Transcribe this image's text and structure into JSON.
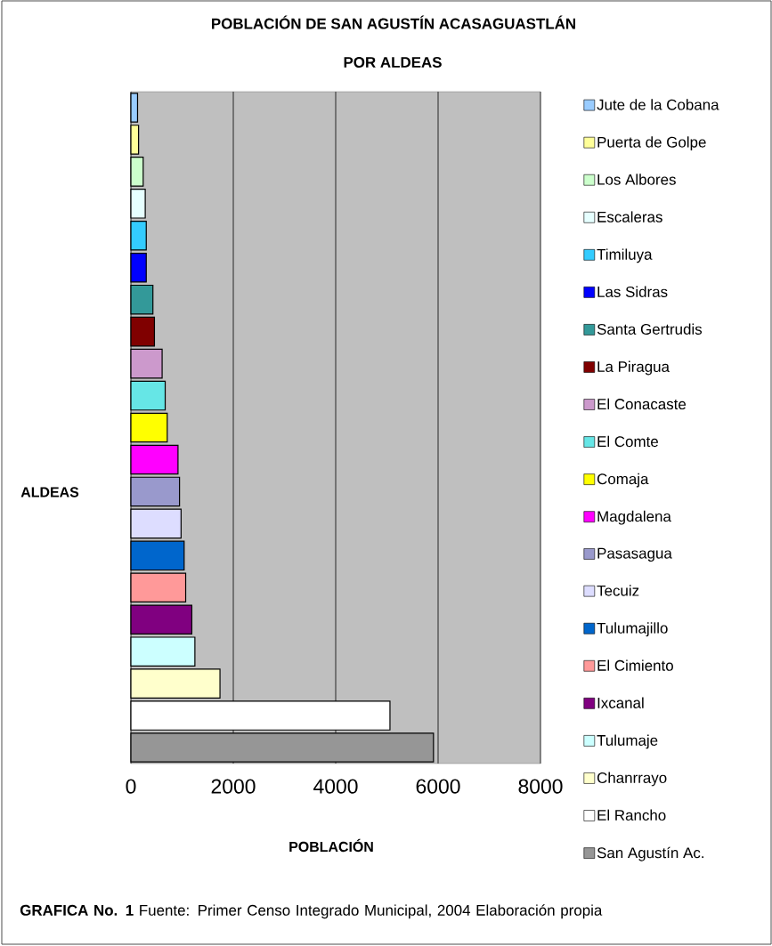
{
  "chart_data": {
    "type": "bar",
    "orientation": "horizontal",
    "title": "POBLACIÓN DE SAN AGUSTÍN ACASAGUASTLÁN",
    "subtitle": "POR ALDEAS",
    "xlabel": "POBLACIÓN",
    "ylabel": "ALDEAS",
    "categories": [
      null,
      null,
      null,
      null,
      null,
      null,
      null,
      null,
      null,
      null,
      null,
      null,
      null,
      null,
      null,
      null,
      null,
      null,
      null,
      null,
      null
    ],
    "series": [
      {
        "name": "Jute de la Cobana",
        "color": "#99ccff",
        "values": [
          130,
          null,
          null,
          null,
          null,
          null,
          null,
          null,
          null,
          null,
          null,
          null,
          null,
          null,
          null,
          null,
          null,
          null,
          null,
          null,
          null
        ]
      },
      {
        "name": "Puerta de Golpe",
        "color": "#ffff99",
        "values": [
          null,
          150,
          null,
          null,
          null,
          null,
          null,
          null,
          null,
          null,
          null,
          null,
          null,
          null,
          null,
          null,
          null,
          null,
          null,
          null,
          null
        ]
      },
      {
        "name": "Los Albores",
        "color": "#ccffcc",
        "values": [
          null,
          null,
          240,
          null,
          null,
          null,
          null,
          null,
          null,
          null,
          null,
          null,
          null,
          null,
          null,
          null,
          null,
          null,
          null,
          null,
          null
        ]
      },
      {
        "name": "Escaleras",
        "color": "#e6ffff",
        "values": [
          null,
          null,
          null,
          280,
          null,
          null,
          null,
          null,
          null,
          null,
          null,
          null,
          null,
          null,
          null,
          null,
          null,
          null,
          null,
          null,
          null
        ]
      },
      {
        "name": "Timiluya",
        "color": "#33ccff",
        "values": [
          null,
          null,
          null,
          null,
          300,
          null,
          null,
          null,
          null,
          null,
          null,
          null,
          null,
          null,
          null,
          null,
          null,
          null,
          null,
          null,
          null
        ]
      },
      {
        "name": "Las Sidras",
        "color": "#0000ff",
        "values": [
          null,
          null,
          null,
          null,
          null,
          300,
          null,
          null,
          null,
          null,
          null,
          null,
          null,
          null,
          null,
          null,
          null,
          null,
          null,
          null,
          null
        ]
      },
      {
        "name": "Santa Gertrudis",
        "color": "#339999",
        "values": [
          null,
          null,
          null,
          null,
          null,
          null,
          430,
          null,
          null,
          null,
          null,
          null,
          null,
          null,
          null,
          null,
          null,
          null,
          null,
          null,
          null
        ]
      },
      {
        "name": "La Piragua",
        "color": "#800000",
        "values": [
          null,
          null,
          null,
          null,
          null,
          null,
          null,
          460,
          null,
          null,
          null,
          null,
          null,
          null,
          null,
          null,
          null,
          null,
          null,
          null,
          null
        ]
      },
      {
        "name": "El Conacaste",
        "color": "#cc99cc",
        "values": [
          null,
          null,
          null,
          null,
          null,
          null,
          null,
          null,
          610,
          null,
          null,
          null,
          null,
          null,
          null,
          null,
          null,
          null,
          null,
          null,
          null
        ]
      },
      {
        "name": "El Comte",
        "color": "#66e6e6",
        "values": [
          null,
          null,
          null,
          null,
          null,
          null,
          null,
          null,
          null,
          670,
          null,
          null,
          null,
          null,
          null,
          null,
          null,
          null,
          null,
          null,
          null
        ]
      },
      {
        "name": "Comaja",
        "color": "#ffff00",
        "values": [
          null,
          null,
          null,
          null,
          null,
          null,
          null,
          null,
          null,
          null,
          710,
          null,
          null,
          null,
          null,
          null,
          null,
          null,
          null,
          null,
          null
        ]
      },
      {
        "name": "Magdalena",
        "color": "#ff00ff",
        "values": [
          null,
          null,
          null,
          null,
          null,
          null,
          null,
          null,
          null,
          null,
          null,
          920,
          null,
          null,
          null,
          null,
          null,
          null,
          null,
          null,
          null
        ]
      },
      {
        "name": "Pasasagua",
        "color": "#9999cc",
        "values": [
          null,
          null,
          null,
          null,
          null,
          null,
          null,
          null,
          null,
          null,
          null,
          null,
          950,
          null,
          null,
          null,
          null,
          null,
          null,
          null,
          null
        ]
      },
      {
        "name": "Tecuiz",
        "color": "#ddddff",
        "values": [
          null,
          null,
          null,
          null,
          null,
          null,
          null,
          null,
          null,
          null,
          null,
          null,
          null,
          980,
          null,
          null,
          null,
          null,
          null,
          null,
          null
        ]
      },
      {
        "name": "Tulumajillo",
        "color": "#0066cc",
        "values": [
          null,
          null,
          null,
          null,
          null,
          null,
          null,
          null,
          null,
          null,
          null,
          null,
          null,
          null,
          1040,
          null,
          null,
          null,
          null,
          null,
          null
        ]
      },
      {
        "name": "El Cimiento",
        "color": "#ff9999",
        "values": [
          null,
          null,
          null,
          null,
          null,
          null,
          null,
          null,
          null,
          null,
          null,
          null,
          null,
          null,
          null,
          1070,
          null,
          null,
          null,
          null,
          null
        ]
      },
      {
        "name": "Ixcanal",
        "color": "#800080",
        "values": [
          null,
          null,
          null,
          null,
          null,
          null,
          null,
          null,
          null,
          null,
          null,
          null,
          null,
          null,
          null,
          null,
          1190,
          null,
          null,
          null,
          null
        ]
      },
      {
        "name": "Tulumaje",
        "color": "#ccffff",
        "values": [
          null,
          null,
          null,
          null,
          null,
          null,
          null,
          null,
          null,
          null,
          null,
          null,
          null,
          null,
          null,
          null,
          null,
          1250,
          null,
          null,
          null
        ]
      },
      {
        "name": "Chanrrayo",
        "color": "#ffffcc",
        "values": [
          null,
          null,
          null,
          null,
          null,
          null,
          null,
          null,
          null,
          null,
          null,
          null,
          null,
          null,
          null,
          null,
          null,
          null,
          1740,
          null,
          null
        ]
      },
      {
        "name": "El Rancho",
        "color": "#ffffff",
        "values": [
          null,
          null,
          null,
          null,
          null,
          null,
          null,
          null,
          null,
          null,
          null,
          null,
          null,
          null,
          null,
          null,
          null,
          null,
          null,
          5060,
          null
        ]
      },
      {
        "name": "San Agustín Ac.",
        "color": "#969696",
        "values": [
          null,
          null,
          null,
          null,
          null,
          null,
          null,
          null,
          null,
          null,
          null,
          null,
          null,
          null,
          null,
          null,
          null,
          null,
          null,
          null,
          5910
        ]
      }
    ],
    "xlim": [
      0,
      8000
    ],
    "xticks": [
      0,
      2000,
      4000,
      6000,
      8000
    ],
    "grid": "x",
    "legend": "right",
    "tick_labels": "x",
    "annotations": [
      "**GRAFICA No. 1** Fuente: Primer Censo Integrado Municipal, 2004 Elaboración propia"
    ]
  }
}
